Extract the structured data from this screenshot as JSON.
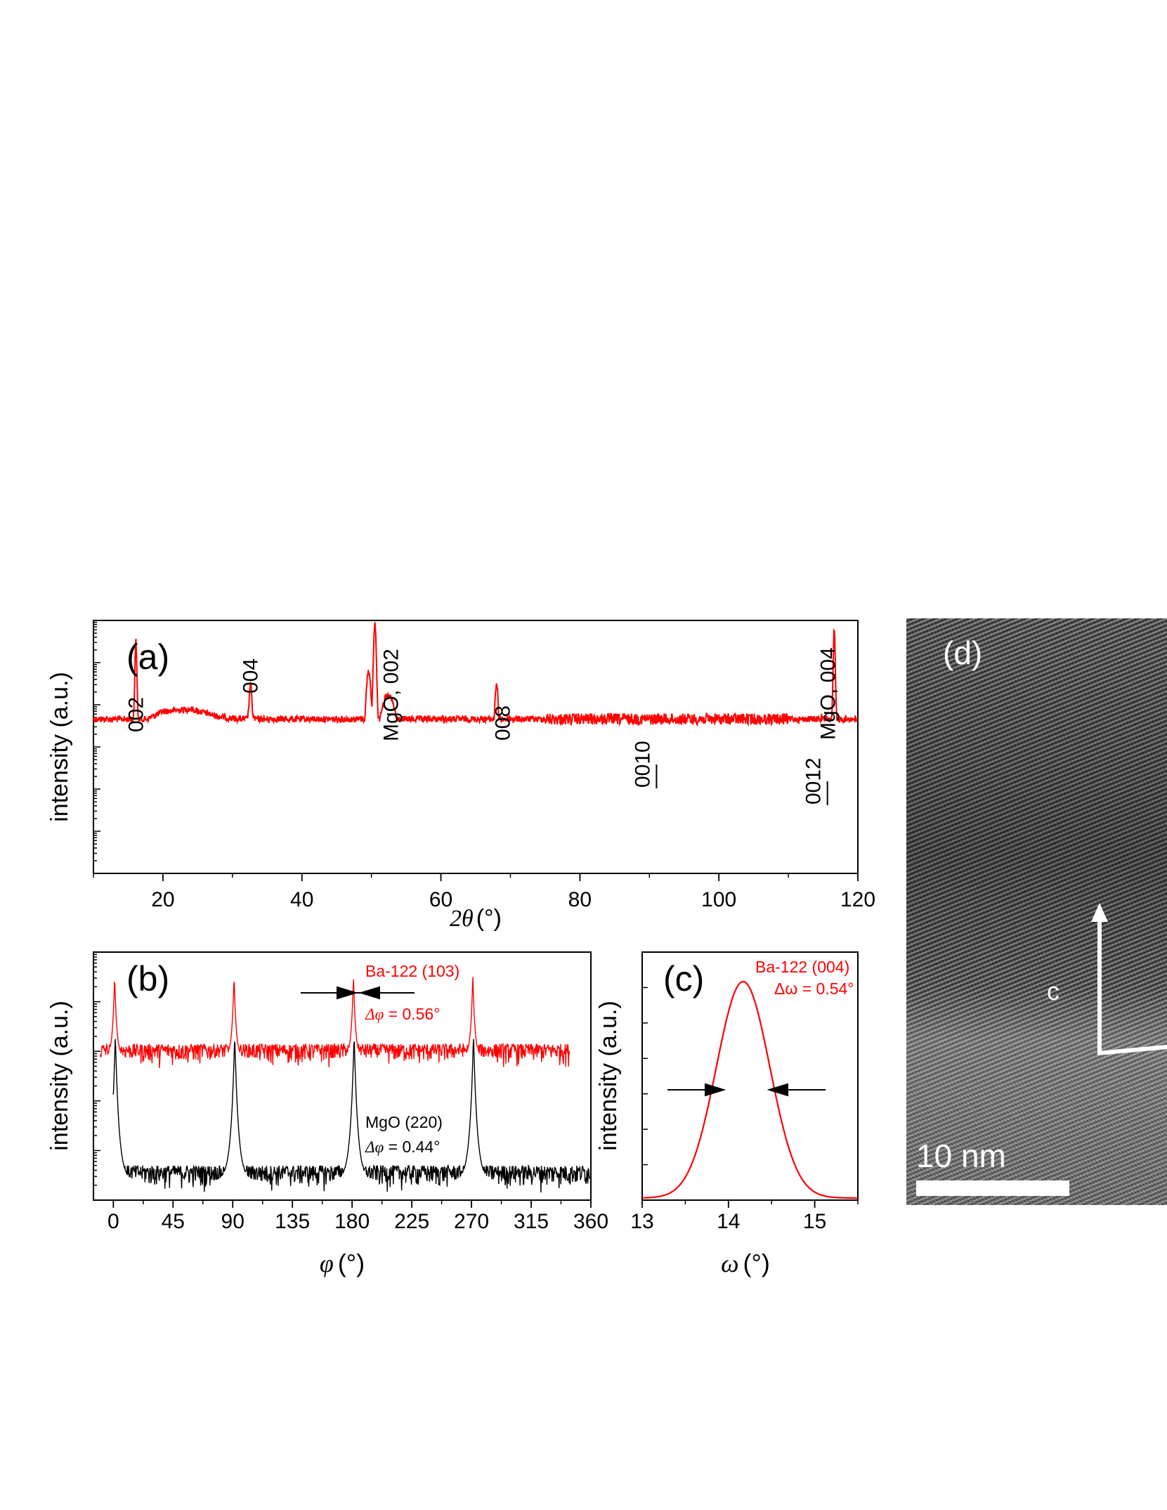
{
  "chart_data": [
    {
      "panel": "(a)",
      "type": "line",
      "xlabel_var": "2θ",
      "xlabel_unit": "(°)",
      "ylabel": "intensity (a.u.)",
      "xlim": [
        10,
        120
      ],
      "xticks": [
        "20",
        "40",
        "60",
        "80",
        "100",
        "120"
      ],
      "yscale": "log",
      "series": [
        {
          "color": "#ff0000",
          "baseline": [
            [
              10,
              0.44
            ],
            [
              13,
              0.43
            ],
            [
              15,
              0.42
            ],
            [
              17,
              0.4
            ],
            [
              20,
              0.36
            ],
            [
              24,
              0.35
            ],
            [
              28,
              0.38
            ],
            [
              31,
              0.39
            ],
            [
              35,
              0.39
            ],
            [
              40,
              0.42
            ],
            [
              45,
              0.46
            ],
            [
              48,
              0.47
            ],
            [
              52,
              0.44
            ],
            [
              55,
              0.48
            ],
            [
              60,
              0.53
            ],
            [
              65,
              0.56
            ],
            [
              70,
              0.59
            ],
            [
              75,
              0.62
            ],
            [
              80,
              0.64
            ],
            [
              85,
              0.63
            ],
            [
              90,
              0.64
            ],
            [
              95,
              0.63
            ],
            [
              100,
              0.63
            ],
            [
              105,
              0.62
            ],
            [
              110,
              0.6
            ],
            [
              112,
              0.58
            ],
            [
              114,
              0.48
            ],
            [
              118,
              0.43
            ],
            [
              120,
              0.43
            ]
          ],
          "peaks": [
            {
              "x": 16.1,
              "top": 0.08,
              "w": 0.22
            },
            {
              "x": 32.6,
              "top": 0.25,
              "w": 0.25
            },
            {
              "x": 50.5,
              "top": 0.01,
              "w": 0.35
            },
            {
              "x": 68.0,
              "top": 0.25,
              "w": 0.45
            },
            {
              "x": 89.0,
              "top": 0.52,
              "w": 0.35
            },
            {
              "x": 114.8,
              "top": 0.38,
              "w": 0.4
            },
            {
              "x": 116.6,
              "top": 0.04,
              "w": 0.25
            }
          ],
          "shoulders": [
            {
              "from": 49,
              "to": 50.2,
              "level": 0.2
            },
            {
              "from": 50.8,
              "to": 54,
              "level": 0.3
            }
          ]
        }
      ],
      "annotations": [
        {
          "text": "002",
          "x": 16.1
        },
        {
          "text": "004",
          "x": 32.6
        },
        {
          "text": "MgO, 002",
          "x": 52.0
        },
        {
          "text": "008",
          "x": 68.0
        },
        {
          "text": "0010",
          "x": 89.0
        },
        {
          "text": "0012",
          "x": 113.5
        },
        {
          "text": "MgO, 004",
          "x": 116.8
        }
      ]
    },
    {
      "panel": "(b)",
      "type": "line",
      "xlabel_var": "φ",
      "xlabel_unit": "(°)",
      "ylabel": "intensity (a.u.)",
      "xlim": [
        -15,
        360
      ],
      "xticks": [
        "0",
        "45",
        "90",
        "135",
        "180",
        "225",
        "270",
        "315",
        "360"
      ],
      "yscale": "log",
      "series": [
        {
          "name": "Ba-122 (103)",
          "color": "#ff0000",
          "x_range": [
            -10,
            344
          ],
          "peaks": [
            1,
            91,
            181,
            271
          ],
          "noise_band": [
            0.37,
            0.48
          ]
        },
        {
          "name": "MgO (220)",
          "color": "#000000",
          "x_range": [
            0,
            360
          ],
          "peaks": [
            1.5,
            91.5,
            181.5,
            271.5
          ],
          "noise_band": [
            0.86,
            0.98
          ]
        }
      ],
      "annotations": [
        {
          "text": "Ba-122 (103)",
          "color": "#ff0000"
        },
        {
          "text_var": "Δφ",
          "text_value": " = 0.56°",
          "color": "#ff0000"
        },
        {
          "text": "MgO (220)",
          "color": "#000000"
        },
        {
          "text_var": "Δφ",
          "text_value": " = 0.44°",
          "color": "#000000"
        }
      ]
    },
    {
      "panel": "(c)",
      "type": "line",
      "xlabel_var": "ω",
      "xlabel_unit": "(°)",
      "ylabel": "intensity (a.u.)",
      "xlim": [
        13,
        15.5
      ],
      "xticks": [
        "13",
        "14",
        "15"
      ],
      "series": [
        {
          "name": "Ba-122 (004)",
          "color": "#ff0000",
          "center": 14.17,
          "fwhm": 0.54
        }
      ],
      "annotations": [
        {
          "text": "Ba-122 (004)",
          "color": "#ff0000"
        },
        {
          "text": "Δω = 0.54°",
          "color": "#ff0000"
        }
      ]
    }
  ],
  "panel_d": {
    "label": "(d)",
    "scale_text": "10 nm",
    "axis_label": "c"
  }
}
